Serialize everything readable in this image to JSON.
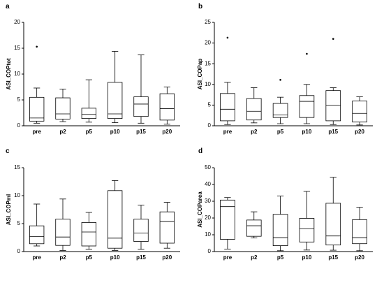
{
  "chart_data": [
    {
      "type": "boxplot",
      "panel": "a",
      "ylabel": "ASI_COPtot",
      "ylim": [
        0,
        20
      ],
      "yticks": [
        0,
        5,
        10,
        15,
        20
      ],
      "categories": [
        "pre",
        "p2",
        "p5",
        "p10",
        "p15",
        "p20"
      ],
      "boxes": [
        {
          "min": 0.5,
          "q1": 0.9,
          "median": 1.5,
          "q3": 5.5,
          "max": 7.3,
          "outliers": [
            15.3
          ]
        },
        {
          "min": 0.8,
          "q1": 1.3,
          "median": 2.3,
          "q3": 5.4,
          "max": 7.1,
          "outliers": []
        },
        {
          "min": 0.7,
          "q1": 1.4,
          "median": 2.2,
          "q3": 3.4,
          "max": 8.9,
          "outliers": []
        },
        {
          "min": 0.6,
          "q1": 1.4,
          "median": 2.3,
          "q3": 8.4,
          "max": 14.4,
          "outliers": []
        },
        {
          "min": 0.5,
          "q1": 1.8,
          "median": 4.2,
          "q3": 5.6,
          "max": 13.7,
          "outliers": []
        },
        {
          "min": 0.3,
          "q1": 1.1,
          "median": 3.3,
          "q3": 6.2,
          "max": 7.5,
          "outliers": []
        }
      ]
    },
    {
      "type": "boxplot",
      "panel": "b",
      "ylabel": "ASI_COPap",
      "ylim": [
        0,
        25
      ],
      "yticks": [
        0,
        5,
        10,
        15,
        20,
        25
      ],
      "categories": [
        "pre",
        "p2",
        "p5",
        "p10",
        "p15",
        "p20"
      ],
      "boxes": [
        {
          "min": 0.3,
          "q1": 1.2,
          "median": 4.0,
          "q3": 7.8,
          "max": 10.5,
          "outliers": [
            21.3
          ]
        },
        {
          "min": 0.7,
          "q1": 1.4,
          "median": 3.5,
          "q3": 6.6,
          "max": 9.2,
          "outliers": []
        },
        {
          "min": 0.5,
          "q1": 2.0,
          "median": 2.6,
          "q3": 5.4,
          "max": 6.9,
          "outliers": [
            11.1
          ]
        },
        {
          "min": 0.5,
          "q1": 2.0,
          "median": 5.9,
          "q3": 7.3,
          "max": 10.0,
          "outliers": [
            17.4
          ]
        },
        {
          "min": 0.3,
          "q1": 1.2,
          "median": 5.0,
          "q3": 8.5,
          "max": 9.2,
          "outliers": [
            21.0
          ]
        },
        {
          "min": 0.2,
          "q1": 0.9,
          "median": 3.0,
          "q3": 6.0,
          "max": 7.0,
          "outliers": []
        }
      ]
    },
    {
      "type": "boxplot",
      "panel": "c",
      "ylabel": "ASI_COPml",
      "ylim": [
        0,
        15
      ],
      "yticks": [
        0,
        5,
        10,
        15
      ],
      "categories": [
        "pre",
        "p2",
        "p5",
        "p10",
        "p15",
        "p20"
      ],
      "boxes": [
        {
          "min": 1.0,
          "q1": 1.4,
          "median": 2.7,
          "q3": 4.6,
          "max": 8.5,
          "outliers": []
        },
        {
          "min": 0.2,
          "q1": 1.1,
          "median": 2.6,
          "q3": 5.8,
          "max": 9.4,
          "outliers": []
        },
        {
          "min": 0.4,
          "q1": 1.0,
          "median": 3.5,
          "q3": 5.2,
          "max": 7.0,
          "outliers": []
        },
        {
          "min": 0.2,
          "q1": 0.6,
          "median": 2.4,
          "q3": 10.9,
          "max": 12.7,
          "outliers": []
        },
        {
          "min": 0.4,
          "q1": 1.8,
          "median": 3.3,
          "q3": 5.8,
          "max": 8.3,
          "outliers": []
        },
        {
          "min": 0.6,
          "q1": 1.5,
          "median": 5.4,
          "q3": 7.1,
          "max": 8.8,
          "outliers": []
        }
      ]
    },
    {
      "type": "boxplot",
      "panel": "d",
      "ylabel": "ASI_COParea",
      "ylim": [
        0,
        50
      ],
      "yticks": [
        0,
        10,
        20,
        30,
        40,
        50
      ],
      "categories": [
        "pre",
        "p2",
        "p5",
        "p10",
        "p15",
        "p20"
      ],
      "boxes": [
        {
          "min": 1.5,
          "q1": 7.3,
          "median": 26.8,
          "q3": 30.7,
          "max": 32.2,
          "outliers": []
        },
        {
          "min": 8.1,
          "q1": 9.1,
          "median": 15.4,
          "q3": 18.8,
          "max": 23.7,
          "outliers": []
        },
        {
          "min": 0.5,
          "q1": 3.5,
          "median": 8.3,
          "q3": 22.2,
          "max": 33.1,
          "outliers": []
        },
        {
          "min": 0.9,
          "q1": 5.7,
          "median": 13.5,
          "q3": 19.8,
          "max": 35.9,
          "outliers": []
        },
        {
          "min": 0.8,
          "q1": 3.9,
          "median": 9.3,
          "q3": 28.8,
          "max": 44.3,
          "outliers": []
        },
        {
          "min": 0.5,
          "q1": 4.7,
          "median": 8.3,
          "q3": 19.0,
          "max": 26.4,
          "outliers": []
        }
      ]
    }
  ]
}
